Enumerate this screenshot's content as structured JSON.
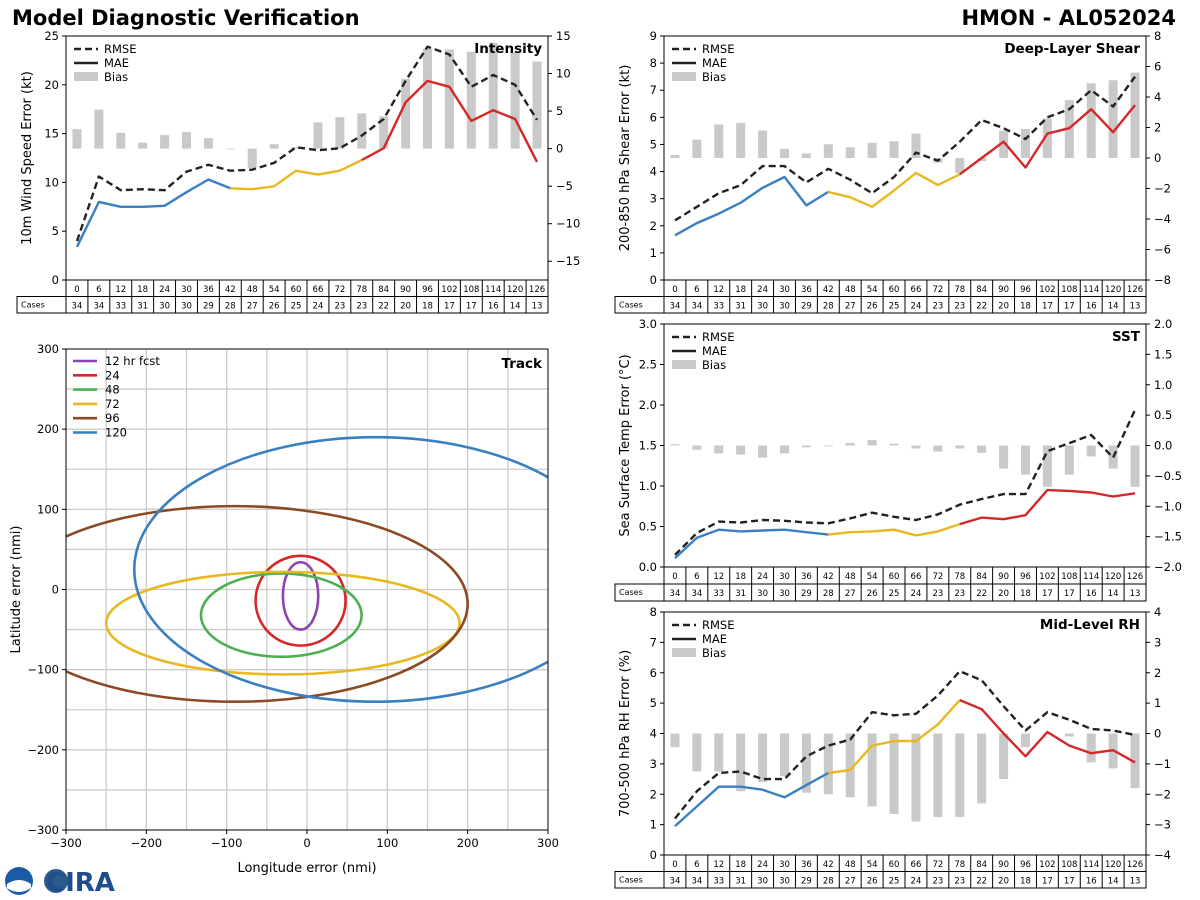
{
  "header": {
    "title": "Model Diagnostic Verification",
    "storm": "HMON - AL052024"
  },
  "lead_hours": [
    "0",
    "6",
    "12",
    "18",
    "24",
    "30",
    "36",
    "42",
    "48",
    "54",
    "60",
    "66",
    "72",
    "78",
    "84",
    "90",
    "96",
    "102",
    "108",
    "114",
    "120",
    "126"
  ],
  "cases": [
    "34",
    "34",
    "33",
    "31",
    "30",
    "30",
    "29",
    "28",
    "27",
    "26",
    "25",
    "24",
    "23",
    "23",
    "22",
    "20",
    "18",
    "17",
    "17",
    "16",
    "14",
    "13"
  ],
  "table_cases_label": "Cases",
  "legend_labels": {
    "rmse": "RMSE",
    "mae": "MAE",
    "bias": "Bias"
  },
  "colors": {
    "rmse": "#222222",
    "seg1": "#3a7fc1",
    "seg2": "#e8b820",
    "seg3": "#d62728",
    "bias": "#c9c9c9",
    "grid": "#cccccc"
  },
  "logo": {
    "agency": "NOAA",
    "text": "CIRA"
  },
  "chart_data": [
    {
      "id": "intensity",
      "type": "line",
      "title": "Intensity",
      "ylabel": "10m Wind Speed Error (kt)",
      "ylim": [
        0,
        25
      ],
      "yticks": [
        "0",
        "5",
        "10",
        "15",
        "20",
        "25"
      ],
      "y2lim": [
        -17.5,
        15
      ],
      "y2ticks": [
        "−15",
        "−10",
        "−5",
        "0",
        "5",
        "10",
        "15"
      ],
      "rmse": [
        4.0,
        10.6,
        9.2,
        9.3,
        9.2,
        11.1,
        11.8,
        11.2,
        11.3,
        12.0,
        13.6,
        13.3,
        13.5,
        14.8,
        16.5,
        20.4,
        23.9,
        23.1,
        19.8,
        21.0,
        20.0,
        16.4
      ],
      "mae": [
        3.4,
        8.0,
        7.5,
        7.5,
        7.6,
        9.0,
        10.3,
        9.4,
        9.3,
        9.6,
        11.2,
        10.8,
        11.2,
        12.3,
        13.5,
        18.2,
        20.4,
        19.8,
        16.3,
        17.4,
        16.5,
        12.1
      ],
      "bias": [
        2.6,
        5.2,
        2.1,
        0.8,
        1.8,
        2.2,
        1.4,
        0.0,
        -2.6,
        0.6,
        0.2,
        3.5,
        4.2,
        4.7,
        4.3,
        9.3,
        13.3,
        13.2,
        12.9,
        14.1,
        12.8,
        11.6
      ],
      "seg_breaks": [
        7,
        13
      ]
    },
    {
      "id": "shear",
      "type": "line",
      "title": "Deep-Layer Shear",
      "ylabel": "200-850 hPa Shear Error (kt)",
      "ylim": [
        0,
        9
      ],
      "yticks": [
        "0",
        "1",
        "2",
        "3",
        "4",
        "5",
        "6",
        "7",
        "8",
        "9"
      ],
      "y2lim": [
        -8,
        8
      ],
      "y2ticks": [
        "−8",
        "−6",
        "−4",
        "−2",
        "0",
        "2",
        "4",
        "6",
        "8"
      ],
      "rmse": [
        2.2,
        2.7,
        3.2,
        3.5,
        4.2,
        4.2,
        3.6,
        4.1,
        3.7,
        3.2,
        3.8,
        4.7,
        4.4,
        5.1,
        5.9,
        5.6,
        5.2,
        6.0,
        6.3,
        7.0,
        6.4,
        7.5
      ],
      "mae": [
        1.65,
        2.1,
        2.45,
        2.85,
        3.4,
        3.8,
        2.75,
        3.25,
        3.05,
        2.7,
        3.3,
        3.95,
        3.5,
        3.9,
        4.5,
        5.1,
        4.15,
        5.4,
        5.6,
        6.3,
        5.45,
        6.45
      ],
      "bias": [
        0.2,
        1.2,
        2.2,
        2.3,
        1.8,
        0.6,
        0.3,
        0.9,
        0.7,
        1.0,
        1.1,
        1.6,
        -0.3,
        -1.0,
        -0.2,
        1.8,
        1.9,
        2.6,
        3.8,
        4.9,
        5.1,
        5.6
      ],
      "seg_breaks": [
        7,
        13
      ]
    },
    {
      "id": "sst",
      "type": "line",
      "title": "SST",
      "ylabel": "Sea Surface Temp Error (°C)",
      "ylim": [
        0,
        3
      ],
      "yticks": [
        "0.0",
        "0.5",
        "1.0",
        "1.5",
        "2.0",
        "2.5",
        "3.0"
      ],
      "y2lim": [
        -2,
        2
      ],
      "y2ticks": [
        "−2.0",
        "−1.5",
        "−1.0",
        "−0.5",
        "0.0",
        "0.5",
        "1.0",
        "1.5",
        "2.0"
      ],
      "rmse": [
        0.15,
        0.42,
        0.56,
        0.55,
        0.58,
        0.57,
        0.55,
        0.54,
        0.6,
        0.67,
        0.62,
        0.58,
        0.65,
        0.77,
        0.84,
        0.9,
        0.9,
        1.43,
        1.53,
        1.63,
        1.35,
        1.94
      ],
      "mae": [
        0.11,
        0.36,
        0.46,
        0.44,
        0.45,
        0.46,
        0.43,
        0.4,
        0.43,
        0.44,
        0.46,
        0.39,
        0.44,
        0.53,
        0.61,
        0.59,
        0.64,
        0.95,
        0.94,
        0.92,
        0.87,
        0.91
      ],
      "bias": [
        0.02,
        -0.07,
        -0.13,
        -0.15,
        -0.2,
        -0.13,
        -0.03,
        -0.01,
        0.04,
        0.09,
        0.03,
        -0.05,
        -0.1,
        -0.05,
        -0.12,
        -0.38,
        -0.48,
        -0.68,
        -0.48,
        -0.18,
        -0.38,
        -0.68
      ],
      "seg_breaks": [
        7,
        13
      ]
    },
    {
      "id": "rh",
      "type": "line",
      "title": "Mid-Level RH",
      "ylabel": "700-500 hPa RH Error (%)",
      "ylim": [
        0,
        8
      ],
      "yticks": [
        "0",
        "1",
        "2",
        "3",
        "4",
        "5",
        "6",
        "7",
        "8"
      ],
      "y2lim": [
        -4,
        4
      ],
      "y2ticks": [
        "−4",
        "−3",
        "−2",
        "−1",
        "0",
        "1",
        "2",
        "3",
        "4"
      ],
      "rmse": [
        1.2,
        2.1,
        2.7,
        2.75,
        2.5,
        2.5,
        3.25,
        3.6,
        3.8,
        4.7,
        4.6,
        4.65,
        5.25,
        6.05,
        5.75,
        4.9,
        4.1,
        4.7,
        4.45,
        4.15,
        4.1,
        3.95
      ],
      "mae": [
        0.95,
        1.6,
        2.25,
        2.25,
        2.15,
        1.9,
        2.3,
        2.7,
        2.8,
        3.6,
        3.75,
        3.75,
        4.3,
        5.1,
        4.8,
        4.0,
        3.25,
        4.05,
        3.6,
        3.35,
        3.45,
        3.05
      ],
      "bias": [
        -0.45,
        -1.25,
        -1.25,
        -1.9,
        -1.6,
        -1.4,
        -1.95,
        -2.0,
        -2.1,
        -2.4,
        -2.65,
        -2.9,
        -2.75,
        -2.75,
        -2.3,
        -1.5,
        -0.45,
        0.0,
        -0.1,
        -0.95,
        -1.15,
        -1.8
      ],
      "seg_breaks": [
        7,
        13
      ]
    },
    {
      "id": "track",
      "type": "ellipse",
      "title": "Track",
      "xlabel": "Longitude error (nmi)",
      "ylabel": "Latitude error (nmi)",
      "xlim": [
        -300,
        300
      ],
      "ylim": [
        -300,
        300
      ],
      "xticks": [
        "−300",
        "−200",
        "−100",
        "0",
        "100",
        "200",
        "300"
      ],
      "yticks": [
        "−300",
        "−200",
        "−100",
        "0",
        "100",
        "200",
        "300"
      ],
      "series": [
        {
          "label": "12 hr fcst",
          "color": "#8e44ad",
          "center": [
            -8,
            -8
          ],
          "rx": 22,
          "ry": 42
        },
        {
          "label": "24",
          "color": "#d62728",
          "center": [
            -8,
            -14
          ],
          "rx": 56,
          "ry": 56
        },
        {
          "label": "48",
          "color": "#4caf50",
          "center": [
            -32,
            -32
          ],
          "rx": 100,
          "ry": 52
        },
        {
          "label": "72",
          "color": "#e8b820",
          "center": [
            -30,
            -42
          ],
          "rx": 220,
          "ry": 64
        },
        {
          "label": "96",
          "color": "#8b4a23",
          "center": [
            -90,
            -18
          ],
          "rx": 290,
          "ry": 122
        },
        {
          "label": "120",
          "color": "#3a7fc1",
          "center": [
            85,
            25
          ],
          "rx": 300,
          "ry": 165
        }
      ]
    }
  ]
}
